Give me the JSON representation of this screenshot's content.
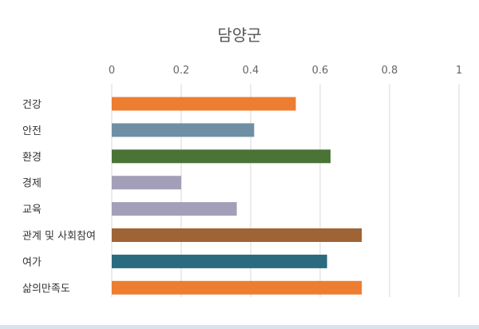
{
  "chart_data": {
    "type": "bar",
    "orientation": "horizontal",
    "title": "담양군",
    "xlabel": "",
    "ylabel": "",
    "xlim": [
      0,
      1
    ],
    "ticks": [
      "0",
      "0.2",
      "0.4",
      "0.6",
      "0.8",
      "1"
    ],
    "tick_values": [
      0,
      0.2,
      0.4,
      0.6,
      0.8,
      1
    ],
    "grid": true,
    "legend": "none",
    "categories": [
      "건강",
      "안전",
      "환경",
      "경제",
      "교육",
      "관계 및 사회참여",
      "여가",
      "삶의만족도"
    ],
    "values": [
      0.53,
      0.41,
      0.63,
      0.2,
      0.36,
      0.72,
      0.62,
      0.72
    ],
    "colors": [
      "#ed7d31",
      "#6f8fa5",
      "#4a7336",
      "#a49fb8",
      "#a49fb8",
      "#9e6436",
      "#2b6b80",
      "#ed7d31"
    ]
  }
}
